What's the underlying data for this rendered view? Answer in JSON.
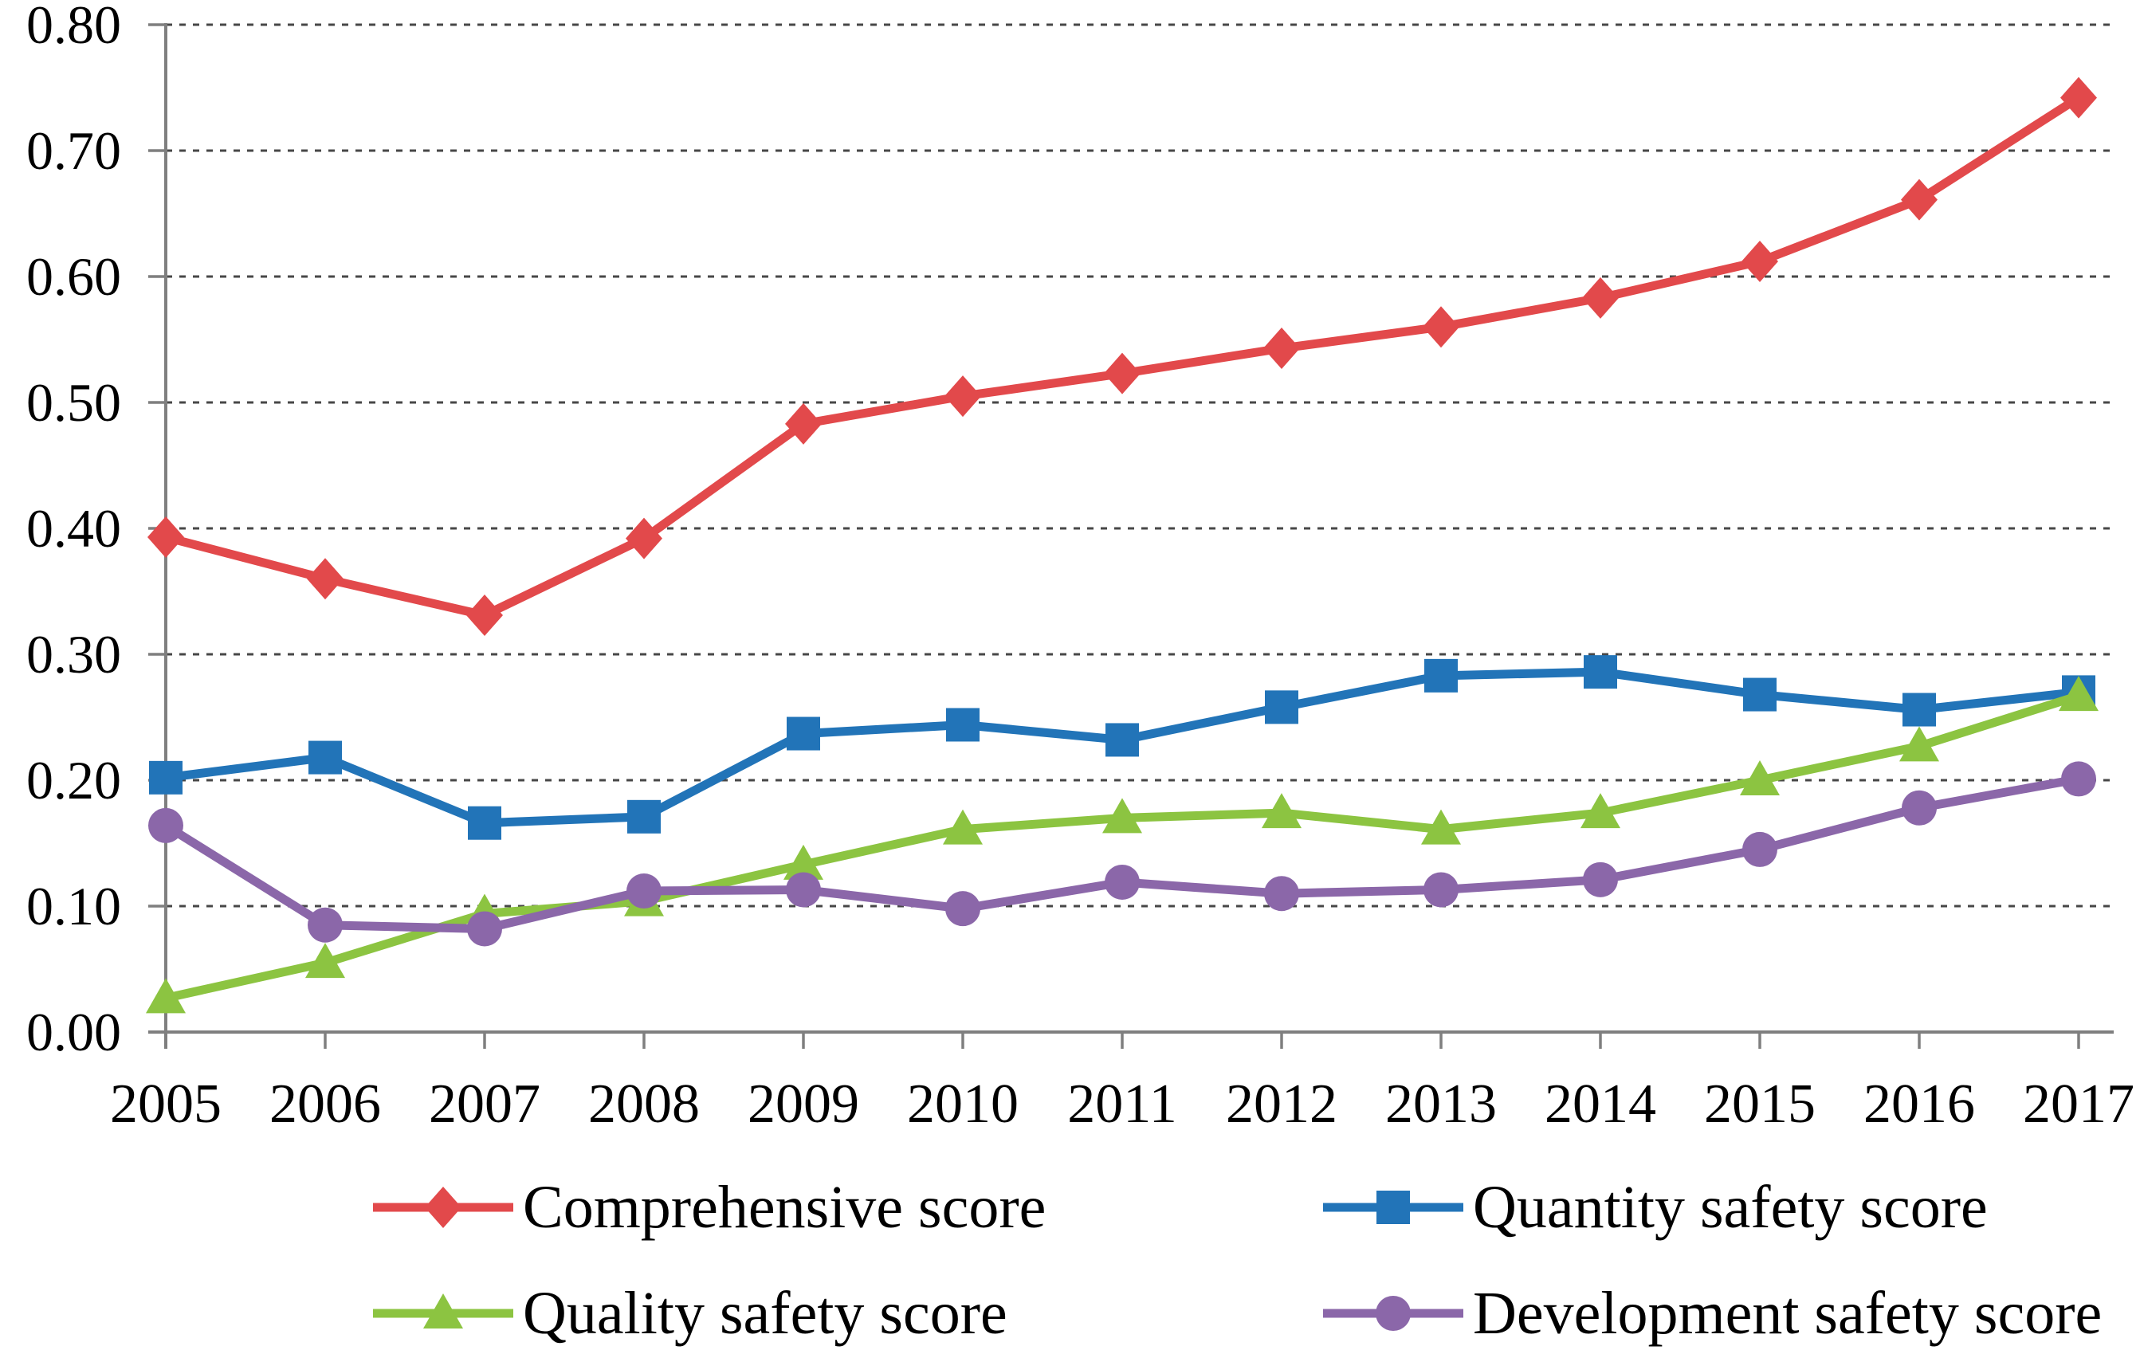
{
  "chart_data": {
    "type": "line",
    "x_categories": [
      "2005",
      "2006",
      "2007",
      "2008",
      "2009",
      "2010",
      "2011",
      "2012",
      "2013",
      "2014",
      "2015",
      "2016",
      "2017"
    ],
    "series": [
      {
        "name": "Comprehensive score",
        "marker": "diamond",
        "color": "#E2494B",
        "values": [
          0.393,
          0.36,
          0.331,
          0.392,
          0.483,
          0.505,
          0.523,
          0.543,
          0.56,
          0.583,
          0.612,
          0.661,
          0.742
        ]
      },
      {
        "name": "Quantity safety score",
        "marker": "square",
        "color": "#2274B8",
        "values": [
          0.202,
          0.218,
          0.166,
          0.171,
          0.237,
          0.244,
          0.232,
          0.258,
          0.283,
          0.286,
          0.268,
          0.256,
          0.27
        ]
      },
      {
        "name": "Quality safety score",
        "marker": "triangle",
        "color": "#8CC441",
        "values": [
          0.027,
          0.055,
          0.094,
          0.104,
          0.133,
          0.161,
          0.17,
          0.174,
          0.161,
          0.174,
          0.2,
          0.227,
          0.267
        ]
      },
      {
        "name": "Development safety score",
        "marker": "circle",
        "color": "#8B67A9",
        "values": [
          0.164,
          0.085,
          0.082,
          0.112,
          0.113,
          0.098,
          0.119,
          0.11,
          0.113,
          0.121,
          0.145,
          0.178,
          0.201
        ]
      }
    ],
    "title": "",
    "xlabel": "",
    "ylabel": "",
    "ylim": [
      0,
      0.8
    ],
    "ytick_step": 0.1,
    "ytick_labels": [
      "0.00",
      "0.10",
      "0.20",
      "0.30",
      "0.40",
      "0.50",
      "0.60",
      "0.70",
      "0.80"
    ],
    "grid": {
      "horizontal": true,
      "style": "dashed",
      "color": "#474747"
    },
    "axis_color": "#7F7F7F",
    "legend_position": "bottom",
    "legend_rows": 2,
    "legend_columns": 2
  }
}
